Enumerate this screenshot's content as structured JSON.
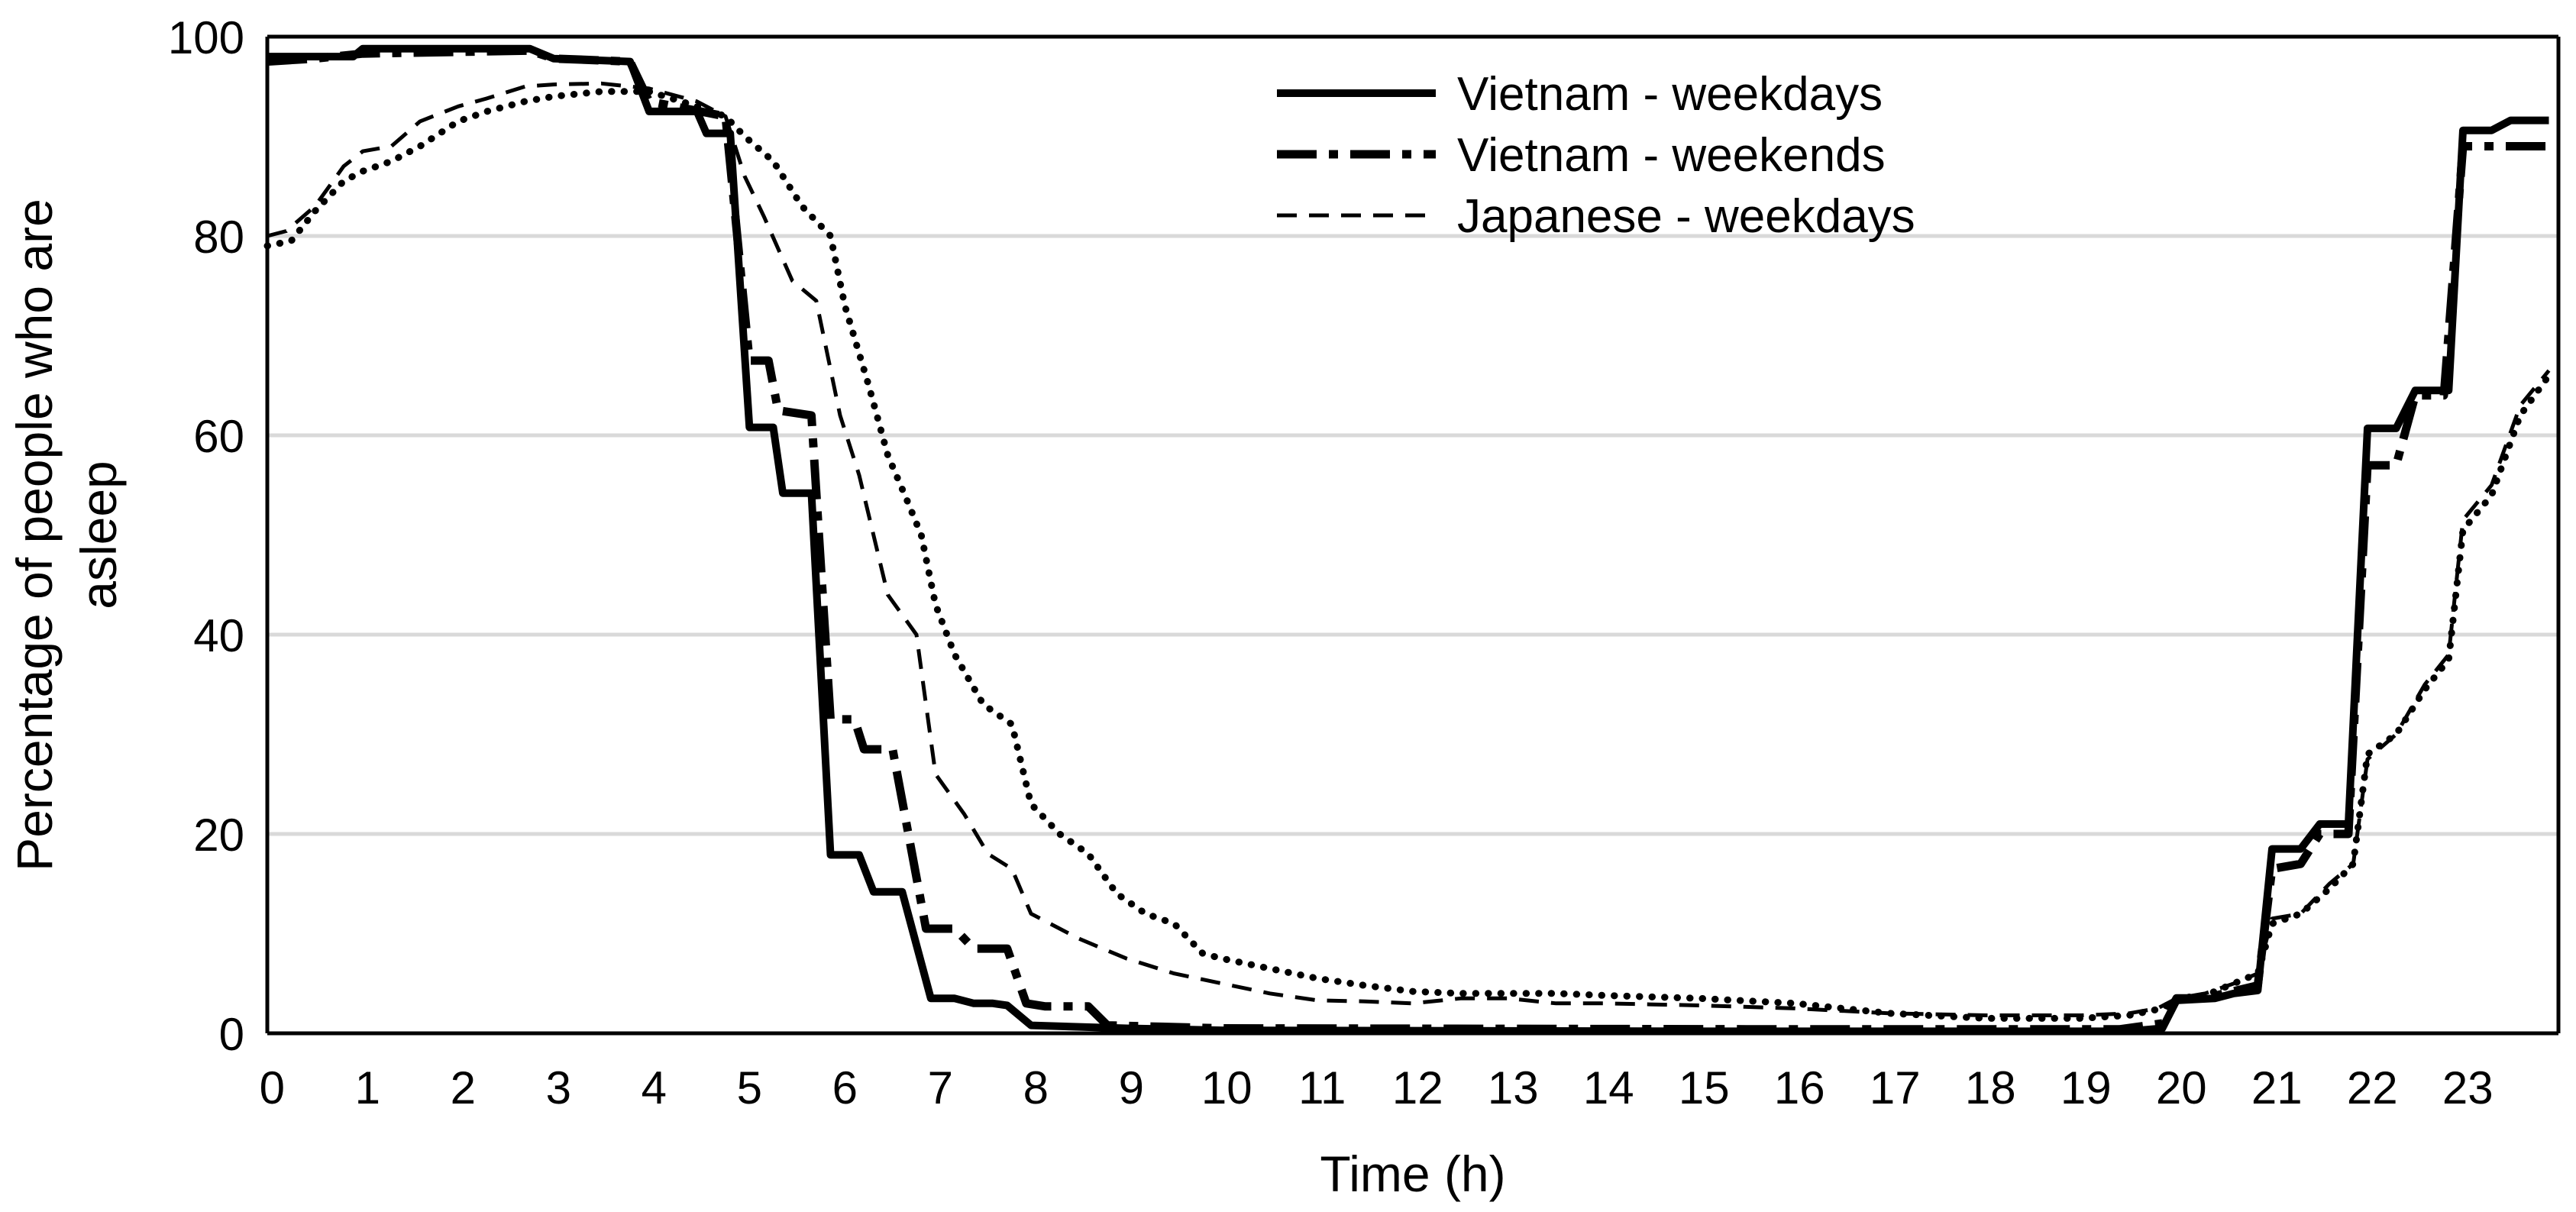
{
  "chart_data": {
    "type": "line",
    "title": "",
    "xlabel": "Time (h)",
    "ylabel_lines": [
      "Percentage of people who are",
      "asleep"
    ],
    "xlim": [
      0,
      24
    ],
    "ylim": [
      0,
      100
    ],
    "xticks": [
      "0",
      "1",
      "2",
      "3",
      "4",
      "5",
      "6",
      "7",
      "8",
      "9",
      "10",
      "11",
      "12",
      "13",
      "14",
      "15",
      "16",
      "17",
      "18",
      "19",
      "20",
      "21",
      "22",
      "23"
    ],
    "yticks": [
      "0",
      "20",
      "40",
      "60",
      "80",
      "100"
    ],
    "grid": true,
    "legend_position": "top-center",
    "colors": {
      "series": "#000000",
      "grid": "#d9d9d9",
      "axis": "#000000"
    },
    "legend": [
      "Vietnam - weekdays",
      "Vietnam - weekends",
      "Japanese - weekdays"
    ],
    "series": [
      {
        "name": "Vietnam - weekdays",
        "style": "solid",
        "points": [
          [
            0,
            98
          ],
          [
            0.9,
            98
          ],
          [
            1,
            98.8
          ],
          [
            2.75,
            98.8
          ],
          [
            3,
            97.8
          ],
          [
            3.8,
            97.5
          ],
          [
            4,
            92.5
          ],
          [
            4.5,
            92.5
          ],
          [
            4.6,
            90.3
          ],
          [
            4.85,
            90.3
          ],
          [
            5.05,
            60.8
          ],
          [
            5.3,
            60.8
          ],
          [
            5.4,
            54.2
          ],
          [
            5.7,
            54.2
          ],
          [
            5.9,
            17.9
          ],
          [
            6.2,
            17.9
          ],
          [
            6.35,
            14.2
          ],
          [
            6.65,
            14.2
          ],
          [
            6.95,
            3.5
          ],
          [
            7.2,
            3.5
          ],
          [
            7.4,
            3
          ],
          [
            7.6,
            3
          ],
          [
            7.75,
            2.8
          ],
          [
            8,
            0.8
          ],
          [
            9,
            0.5
          ],
          [
            10,
            0.3
          ],
          [
            15,
            0.2
          ],
          [
            19.5,
            0.2
          ],
          [
            19.85,
            0.5
          ],
          [
            20,
            3.3
          ],
          [
            20.4,
            3.5
          ],
          [
            20.6,
            4
          ],
          [
            20.85,
            4.3
          ],
          [
            21,
            18.5
          ],
          [
            21.3,
            18.5
          ],
          [
            21.5,
            21
          ],
          [
            21.8,
            21
          ],
          [
            22,
            60.7
          ],
          [
            22.3,
            60.7
          ],
          [
            22.5,
            64.5
          ],
          [
            22.85,
            64.5
          ],
          [
            23,
            90.6
          ],
          [
            23.3,
            90.6
          ],
          [
            23.5,
            91.6
          ],
          [
            23.9,
            91.6
          ]
        ]
      },
      {
        "name": "Vietnam - weekends",
        "style": "dashdot",
        "points": [
          [
            0,
            97.5
          ],
          [
            0.5,
            97.8
          ],
          [
            1,
            98.3
          ],
          [
            2.75,
            98.6
          ],
          [
            3,
            97.8
          ],
          [
            3.8,
            97.5
          ],
          [
            4,
            93.5
          ],
          [
            4.8,
            92
          ],
          [
            5.05,
            67.5
          ],
          [
            5.25,
            67.5
          ],
          [
            5.35,
            62.5
          ],
          [
            5.7,
            62
          ],
          [
            5.9,
            31.5
          ],
          [
            6.15,
            31.5
          ],
          [
            6.25,
            28.5
          ],
          [
            6.55,
            28.5
          ],
          [
            6.9,
            10.5
          ],
          [
            7.2,
            10.5
          ],
          [
            7.4,
            8.5
          ],
          [
            7.75,
            8.5
          ],
          [
            7.95,
            3
          ],
          [
            8.15,
            2.7
          ],
          [
            8.6,
            2.7
          ],
          [
            8.8,
            0.8
          ],
          [
            10,
            0.5
          ],
          [
            16,
            0.4
          ],
          [
            19.4,
            0.4
          ],
          [
            19.85,
            1
          ],
          [
            20,
            3.5
          ],
          [
            20.3,
            3.5
          ],
          [
            20.5,
            4
          ],
          [
            20.85,
            4.8
          ],
          [
            21,
            16.5
          ],
          [
            21.3,
            17
          ],
          [
            21.5,
            20
          ],
          [
            21.8,
            20
          ],
          [
            22,
            57
          ],
          [
            22.3,
            57
          ],
          [
            22.5,
            64
          ],
          [
            22.8,
            64
          ],
          [
            23,
            89
          ],
          [
            23.5,
            89
          ],
          [
            23.9,
            89
          ]
        ]
      },
      {
        "name": "Japanese - weekdays",
        "style": "dashed",
        "points": [
          [
            0,
            80
          ],
          [
            0.2,
            80.5
          ],
          [
            0.5,
            83
          ],
          [
            0.8,
            87
          ],
          [
            1,
            88.5
          ],
          [
            1.3,
            89
          ],
          [
            1.6,
            91.5
          ],
          [
            2,
            93
          ],
          [
            2.3,
            93.8
          ],
          [
            2.7,
            95
          ],
          [
            3,
            95.2
          ],
          [
            3.5,
            95.3
          ],
          [
            4,
            94.8
          ],
          [
            4.5,
            93.5
          ],
          [
            4.8,
            92
          ],
          [
            5,
            86
          ],
          [
            5.2,
            82
          ],
          [
            5.5,
            75.5
          ],
          [
            5.75,
            73.5
          ],
          [
            6,
            62
          ],
          [
            6.2,
            56
          ],
          [
            6.5,
            44
          ],
          [
            6.8,
            40
          ],
          [
            7,
            26
          ],
          [
            7.3,
            22
          ],
          [
            7.55,
            18
          ],
          [
            7.8,
            16.5
          ],
          [
            8,
            12
          ],
          [
            8.5,
            9.5
          ],
          [
            9,
            7.5
          ],
          [
            9.5,
            6
          ],
          [
            10,
            5
          ],
          [
            10.5,
            4
          ],
          [
            11,
            3.3
          ],
          [
            11.5,
            3.2
          ],
          [
            12,
            3
          ],
          [
            12.5,
            3.5
          ],
          [
            13,
            3.5
          ],
          [
            13.5,
            3
          ],
          [
            14,
            3
          ],
          [
            15,
            2.8
          ],
          [
            16,
            2.5
          ],
          [
            17,
            2
          ],
          [
            18,
            1.8
          ],
          [
            19,
            1.8
          ],
          [
            19.5,
            2
          ],
          [
            19.8,
            2.5
          ],
          [
            20,
            3.5
          ],
          [
            20.3,
            4
          ],
          [
            20.6,
            5
          ],
          [
            20.85,
            6
          ],
          [
            21,
            11.5
          ],
          [
            21.3,
            12
          ],
          [
            21.6,
            15
          ],
          [
            21.85,
            17
          ],
          [
            22,
            27.5
          ],
          [
            22.3,
            30
          ],
          [
            22.6,
            35
          ],
          [
            22.85,
            38
          ],
          [
            23,
            51.5
          ],
          [
            23.3,
            55
          ],
          [
            23.6,
            63
          ],
          [
            23.9,
            66.5
          ]
        ]
      },
      {
        "name": "(unlabeled dotted series)",
        "style": "dotted",
        "points": [
          [
            0,
            79
          ],
          [
            0.25,
            79.5
          ],
          [
            0.5,
            82.5
          ],
          [
            0.8,
            85.5
          ],
          [
            1,
            86.5
          ],
          [
            1.3,
            87.5
          ],
          [
            1.6,
            89
          ],
          [
            2,
            91.5
          ],
          [
            2.3,
            92.5
          ],
          [
            2.7,
            93.5
          ],
          [
            3,
            94
          ],
          [
            3.5,
            94.5
          ],
          [
            4,
            94.5
          ],
          [
            4.5,
            93
          ],
          [
            4.8,
            92
          ],
          [
            5,
            90
          ],
          [
            5.3,
            87.5
          ],
          [
            5.6,
            83
          ],
          [
            5.9,
            80
          ],
          [
            6.05,
            73
          ],
          [
            6.3,
            65
          ],
          [
            6.5,
            58
          ],
          [
            6.7,
            53.5
          ],
          [
            6.85,
            50
          ],
          [
            7,
            43
          ],
          [
            7.2,
            38
          ],
          [
            7.5,
            33
          ],
          [
            7.8,
            31
          ],
          [
            8,
            23
          ],
          [
            8.3,
            20
          ],
          [
            8.6,
            18
          ],
          [
            8.9,
            14
          ],
          [
            9.2,
            12
          ],
          [
            9.5,
            11
          ],
          [
            9.8,
            8
          ],
          [
            10,
            7.5
          ],
          [
            10.5,
            6.5
          ],
          [
            11,
            5.5
          ],
          [
            11.5,
            4.8
          ],
          [
            12,
            4.2
          ],
          [
            12.5,
            4
          ],
          [
            13,
            4
          ],
          [
            13.5,
            4
          ],
          [
            14,
            3.8
          ],
          [
            15,
            3.5
          ],
          [
            16,
            3
          ],
          [
            16.5,
            2.5
          ],
          [
            17,
            2
          ],
          [
            18,
            1.5
          ],
          [
            19,
            1.5
          ],
          [
            19.5,
            1.8
          ],
          [
            19.85,
            2.5
          ],
          [
            20,
            3.5
          ],
          [
            20.3,
            3.8
          ],
          [
            20.6,
            5
          ],
          [
            20.85,
            6
          ],
          [
            21,
            11
          ],
          [
            21.3,
            12
          ],
          [
            21.6,
            14.5
          ],
          [
            21.85,
            17
          ],
          [
            22,
            28
          ],
          [
            22.3,
            30
          ],
          [
            22.6,
            34.5
          ],
          [
            22.85,
            37.5
          ],
          [
            23,
            50.5
          ],
          [
            23.3,
            54
          ],
          [
            23.6,
            62
          ],
          [
            23.9,
            66
          ]
        ]
      }
    ]
  }
}
